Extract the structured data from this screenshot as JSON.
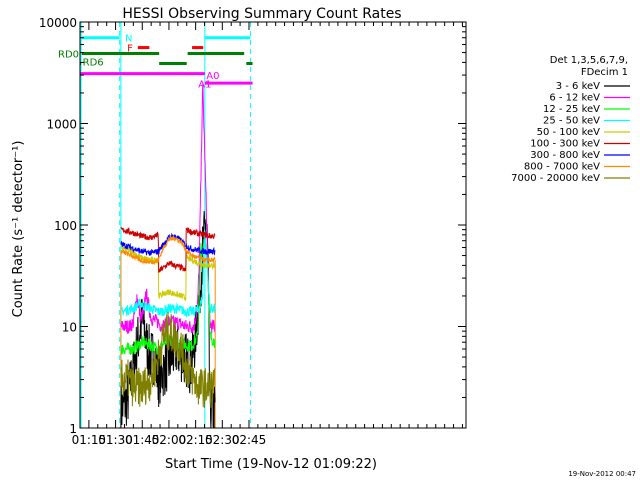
{
  "chart_data": {
    "type": "line",
    "title": "HESSI Observing Summary Count Rates",
    "xlabel": "Start Time (19-Nov-12 01:09:22)",
    "ylabel": "Count Rate (s⁻¹ detector⁻¹)",
    "yscale": "log",
    "ylim": [
      1,
      10000
    ],
    "xlim_minutes": [
      70,
      287
    ],
    "x_unit": "minutes after 00:00 UT, 19-Nov-2012",
    "x_ticks": [
      {
        "v": 75,
        "label": "01:15"
      },
      {
        "v": 90,
        "label": "01:30"
      },
      {
        "v": 105,
        "label": "01:45"
      },
      {
        "v": 120,
        "label": "02:00"
      },
      {
        "v": 135,
        "label": "02:15"
      },
      {
        "v": 150,
        "label": "02:30"
      },
      {
        "v": 165,
        "label": "02:45"
      }
    ],
    "y_ticks": [
      {
        "v": 1,
        "label": "1"
      },
      {
        "v": 10,
        "label": "10"
      },
      {
        "v": 100,
        "label": "100"
      },
      {
        "v": 1000,
        "label": "1000"
      },
      {
        "v": 10000,
        "label": "10000"
      }
    ],
    "legend": {
      "placement": "right",
      "header": [
        "Det 1,3,5,6,7,9,",
        "FDecim 1"
      ],
      "entries": [
        {
          "label": "3 - 6 keV",
          "color": "#000000"
        },
        {
          "label": "6 - 12 keV",
          "color": "#ff00ff"
        },
        {
          "label": "12 - 25 keV",
          "color": "#00ff00"
        },
        {
          "label": "25 - 50 keV",
          "color": "#00ffff"
        },
        {
          "label": "50 - 100 keV",
          "color": "#cccc00"
        },
        {
          "label": "100 - 300 keV",
          "color": "#cc0000"
        },
        {
          "label": "300 - 800 keV",
          "color": "#0000ff"
        },
        {
          "label": "800 - 7000 keV",
          "color": "#ff8800"
        },
        {
          "label": "7000 - 20000 keV",
          "color": "#808000"
        }
      ]
    },
    "series": [
      {
        "name": "3 - 6 keV",
        "color": "#000000",
        "noise": 0.28,
        "x": [
          93,
          97,
          100,
          103,
          105,
          108,
          110,
          112,
          114,
          116,
          120,
          124,
          128,
          131,
          132,
          134,
          136,
          138,
          139,
          140,
          141,
          142,
          143,
          144,
          146
        ],
        "y": [
          1.5,
          2,
          4,
          8,
          12,
          6,
          5,
          5,
          3,
          3.5,
          4.5,
          6,
          5,
          4.5,
          4,
          6,
          12,
          30,
          60,
          80,
          120,
          40,
          1.5,
          1.5,
          1.5
        ]
      },
      {
        "name": "6 - 12 keV",
        "color": "#ff00ff",
        "noise": 0.07,
        "x": [
          93,
          98,
          100,
          102,
          104,
          106,
          107,
          110,
          114,
          116,
          120,
          124,
          130,
          132,
          134,
          136,
          137,
          138,
          139,
          140,
          141,
          142,
          143,
          144,
          146
        ],
        "y": [
          10,
          10,
          11,
          20,
          12,
          14,
          22,
          12,
          11,
          10,
          11,
          11,
          10,
          10,
          10,
          15,
          40,
          300,
          2500,
          600,
          150,
          30,
          11,
          10,
          10
        ]
      },
      {
        "name": "12 - 25 keV",
        "color": "#00ff00",
        "noise": 0.06,
        "x": [
          93,
          100,
          105,
          110,
          114,
          116,
          120,
          124,
          130,
          133,
          136,
          137,
          138,
          139,
          140,
          141,
          142,
          143,
          146
        ],
        "y": [
          6,
          6,
          7,
          6.5,
          6,
          6.5,
          7.5,
          7,
          6.5,
          6.5,
          8,
          20,
          60,
          50,
          80,
          60,
          30,
          8,
          7
        ]
      },
      {
        "name": "25 - 50 keV",
        "color": "#00ffff",
        "noise": 0.05,
        "x": [
          93,
          100,
          104,
          106,
          110,
          114,
          116,
          120,
          124,
          130,
          134,
          137,
          139,
          140,
          141,
          142,
          143,
          146
        ],
        "y": [
          14,
          15,
          17,
          16,
          15,
          14,
          14,
          15,
          15,
          14,
          14,
          15,
          20,
          100,
          50,
          30,
          15,
          15
        ]
      },
      {
        "name": "50 - 100 keV",
        "color": "#cccc00",
        "noise": 0.03,
        "x": [
          93,
          99,
          104,
          110,
          114,
          114.2,
          117,
          120,
          123,
          127,
          129.5,
          129.7,
          133,
          140,
          146
        ],
        "y": [
          60,
          55,
          48,
          45,
          45,
          20,
          21,
          22,
          21,
          20,
          19,
          48,
          45,
          40,
          40
        ]
      },
      {
        "name": "100 - 300 keV",
        "color": "#cc0000",
        "noise": 0.03,
        "x": [
          93,
          99,
          104,
          110,
          114,
          114.2,
          117,
          120,
          123,
          127,
          129.5,
          129.7,
          133,
          140,
          141,
          142,
          146
        ],
        "y": [
          90,
          85,
          78,
          75,
          80,
          35,
          38,
          42,
          40,
          38,
          35,
          90,
          85,
          80,
          80,
          78,
          78
        ]
      },
      {
        "name": "300 - 800 keV",
        "color": "#0000ff",
        "noise": 0.03,
        "x": [
          93,
          99,
          104,
          110,
          114,
          117,
          120,
          123,
          127,
          130,
          133,
          140,
          146
        ],
        "y": [
          65,
          60,
          55,
          53,
          55,
          65,
          75,
          78,
          70,
          62,
          58,
          55,
          55
        ]
      },
      {
        "name": "800 - 7000 keV",
        "color": "#ff8800",
        "noise": 0.025,
        "x": [
          93,
          99,
          104,
          110,
          114,
          117,
          120,
          123,
          127,
          130,
          133,
          140,
          146
        ],
        "y": [
          55,
          50,
          45,
          43,
          45,
          60,
          72,
          75,
          68,
          55,
          50,
          45,
          45
        ]
      },
      {
        "name": "7000 - 20000 keV",
        "color": "#808000",
        "noise": 0.2,
        "x": [
          93,
          97,
          100,
          105,
          110,
          114,
          117,
          120,
          123,
          127,
          130,
          134,
          137,
          141,
          146
        ],
        "y": [
          3,
          3,
          2.5,
          2.5,
          3,
          5,
          8,
          9,
          8,
          6,
          4,
          3,
          2.5,
          2.5,
          2.5
        ]
      }
    ],
    "orange_envelope": {
      "x_start": 93,
      "x_end": 146,
      "level": 1
    },
    "vertical_lines": [
      {
        "x": 70.6,
        "color": "#00ffff",
        "style": "solid"
      },
      {
        "x": 93,
        "color": "#00ffff",
        "style": "solid"
      },
      {
        "x": 140.2,
        "color": "#00ffff",
        "style": "solid"
      },
      {
        "x": 92.3,
        "color": "#00ffff",
        "style": "dashed"
      },
      {
        "x": 165.8,
        "color": "#00ffff",
        "style": "dashed"
      }
    ],
    "flag_bars": [
      {
        "label": "N",
        "color": "#00ffff",
        "y": 7000,
        "segments": [
          [
            71,
            92.3
          ],
          [
            140.2,
            165.8
          ]
        ],
        "label_x": 92.5
      },
      {
        "label": "F",
        "color": "#ff0000",
        "y": 5600,
        "segments": [
          [
            102.5,
            109
          ],
          [
            133,
            139.3
          ]
        ],
        "label_x": 101
      }
    ],
    "reference_bars": [
      {
        "label": "RD0",
        "color": "#008000",
        "y": 4900,
        "segments": [
          [
            71,
            114.5
          ],
          [
            130.5,
            162.3
          ]
        ]
      },
      {
        "label": "RD6",
        "color": "#008000",
        "y": 3900,
        "segments": [
          [
            70,
            70.6
          ],
          [
            114.5,
            130
          ],
          [
            163.5,
            167
          ]
        ]
      },
      {
        "label": "A1",
        "color": "#ff00ff",
        "y": 3100,
        "segments": [
          [
            70,
            140.2
          ]
        ]
      },
      {
        "label": "A0",
        "color": "#ff00ff",
        "y": 2500,
        "segments": [
          [
            140.2,
            167
          ]
        ]
      }
    ],
    "timestamp": "19-Nov-2012 00:47"
  }
}
